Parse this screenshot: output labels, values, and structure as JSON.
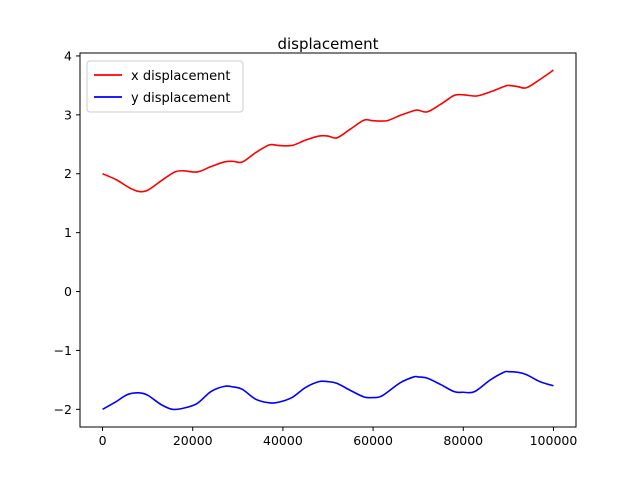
{
  "chart_data": {
    "type": "line",
    "title": "displacement",
    "xlabel": "",
    "ylabel": "",
    "xlim": [
      -5000,
      105000
    ],
    "ylim": [
      -2.3,
      4.05
    ],
    "xticks": [
      0,
      20000,
      40000,
      60000,
      80000,
      100000
    ],
    "xtick_labels": [
      "0",
      "20000",
      "40000",
      "60000",
      "80000",
      "100000"
    ],
    "yticks": [
      -2,
      -1,
      0,
      1,
      2,
      3,
      4
    ],
    "ytick_labels": [
      "−2",
      "−1",
      "0",
      "1",
      "2",
      "3",
      "4"
    ],
    "grid": false,
    "legend_position": "top-left",
    "series": [
      {
        "name": "x displacement",
        "color": "#ff0000",
        "x": [
          0,
          3000,
          6000,
          8000,
          10000,
          13000,
          16000,
          18000,
          21000,
          24000,
          27000,
          29000,
          31000,
          34000,
          37000,
          39000,
          42000,
          45000,
          48000,
          50000,
          52000,
          55000,
          58000,
          60000,
          63000,
          66000,
          69000,
          70000,
          72000,
          75000,
          78000,
          80000,
          83000,
          86000,
          89000,
          90000,
          92000,
          94000,
          97000,
          100000
        ],
        "y": [
          2.0,
          1.9,
          1.76,
          1.7,
          1.72,
          1.88,
          2.03,
          2.05,
          2.03,
          2.12,
          2.2,
          2.21,
          2.2,
          2.36,
          2.49,
          2.48,
          2.48,
          2.57,
          2.64,
          2.64,
          2.61,
          2.76,
          2.91,
          2.9,
          2.9,
          2.99,
          3.07,
          3.08,
          3.05,
          3.18,
          3.33,
          3.34,
          3.32,
          3.39,
          3.48,
          3.5,
          3.48,
          3.46,
          3.6,
          3.76
        ]
      },
      {
        "name": "y displacement",
        "color": "#0000ff",
        "x": [
          0,
          3000,
          5500,
          8000,
          10000,
          13000,
          15500,
          18000,
          21000,
          24000,
          27000,
          29000,
          31000,
          34000,
          37000,
          39000,
          42000,
          45000,
          48000,
          50000,
          52000,
          55000,
          58000,
          60000,
          62000,
          66000,
          69000,
          70000,
          72000,
          75000,
          78000,
          80000,
          82500,
          86000,
          89000,
          90000,
          92000,
          94000,
          97000,
          100000
        ],
        "y": [
          -2.0,
          -1.87,
          -1.75,
          -1.72,
          -1.76,
          -1.92,
          -2.0,
          -1.98,
          -1.9,
          -1.7,
          -1.61,
          -1.62,
          -1.66,
          -1.83,
          -1.89,
          -1.88,
          -1.8,
          -1.63,
          -1.53,
          -1.53,
          -1.56,
          -1.68,
          -1.79,
          -1.8,
          -1.77,
          -1.55,
          -1.45,
          -1.45,
          -1.47,
          -1.58,
          -1.7,
          -1.71,
          -1.7,
          -1.5,
          -1.37,
          -1.36,
          -1.37,
          -1.41,
          -1.53,
          -1.6
        ]
      }
    ]
  }
}
